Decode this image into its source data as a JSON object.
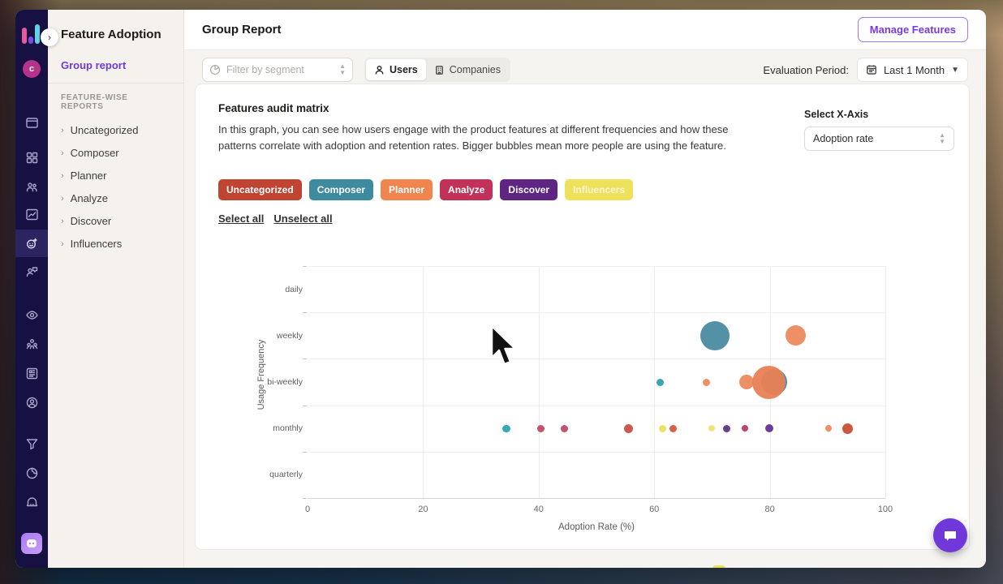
{
  "rail": {
    "logo": {
      "bar_colors": [
        "#e8589b",
        "#7a4de0",
        "#5fd4e6"
      ]
    },
    "avatar": {
      "letter": "c",
      "color": "#b5338a"
    },
    "icons": [
      {
        "name": "browser-window-icon"
      },
      {
        "name": "grid-icon"
      },
      {
        "name": "users-icon"
      },
      {
        "name": "chart-line-icon"
      },
      {
        "name": "feature-adoption-icon",
        "active": true
      },
      {
        "name": "user-message-icon"
      },
      {
        "name": "eye-icon"
      },
      {
        "name": "team-icon"
      },
      {
        "name": "board-icon"
      },
      {
        "name": "user-circle-icon"
      },
      {
        "name": "funnel-icon"
      },
      {
        "name": "disc-icon"
      },
      {
        "name": "alert-icon"
      },
      {
        "name": "activity-icon"
      }
    ],
    "mascot": {
      "name": "assistant-app-icon"
    }
  },
  "sidebar": {
    "title": "Feature Adoption",
    "active_link": "Group report",
    "section_label": "FEATURE-WISE REPORTS",
    "items": [
      {
        "label": "Uncategorized"
      },
      {
        "label": "Composer"
      },
      {
        "label": "Planner"
      },
      {
        "label": "Analyze"
      },
      {
        "label": "Discover"
      },
      {
        "label": "Influencers"
      }
    ]
  },
  "header": {
    "title": "Group Report",
    "manage_button": "Manage Features"
  },
  "filters": {
    "segment_placeholder": "Filter by segment",
    "toggle": [
      {
        "label": "Users",
        "selected": true,
        "icon": "person-icon"
      },
      {
        "label": "Companies",
        "selected": false,
        "icon": "building-icon"
      }
    ],
    "evaluation_label": "Evaluation Period:",
    "evaluation_value": "Last 1 Month",
    "evaluation_icon": "calendar-icon"
  },
  "card": {
    "title": "Features audit matrix",
    "description": "In this graph, you can see how users engage with the product features at different frequencies and how these patterns correlate with adoption and retention rates. Bigger bubbles mean more people are using the feature.",
    "chips": [
      {
        "label": "Uncategorized",
        "color": "#c04432",
        "text_color": "#ffffff"
      },
      {
        "label": "Composer",
        "color": "#3e8ba0",
        "text_color": "#ffffff"
      },
      {
        "label": "Planner",
        "color": "#f0854f",
        "text_color": "#ffffff"
      },
      {
        "label": "Analyze",
        "color": "#c23159",
        "text_color": "#ffffff"
      },
      {
        "label": "Discover",
        "color": "#5e2583",
        "text_color": "#ffffff"
      },
      {
        "label": "Influencers",
        "color": "#eee25c",
        "text_color": "#f8f4d2"
      }
    ],
    "select_all": "Select all",
    "unselect_all": "Unselect all",
    "x_axis_title": "Select X-Axis",
    "x_axis_value": "Adoption rate"
  },
  "chart_data": {
    "type": "scatter",
    "subtype": "bubble",
    "xlabel": "Adoption Rate (%)",
    "ylabel": "Usage Frequency",
    "xlim": [
      0,
      100
    ],
    "x_ticks": [
      0,
      20,
      40,
      60,
      80,
      100
    ],
    "y_categories": [
      "daily",
      "weekly",
      "bi-weekly",
      "monthly",
      "quarterly"
    ],
    "grid": true,
    "points": [
      {
        "category": "weekly",
        "x": 70.5,
        "r": 18,
        "color": "#4a8ba1"
      },
      {
        "category": "weekly",
        "x": 84.5,
        "r": 12.5,
        "color": "#ec8a5e"
      },
      {
        "category": "bi-weekly",
        "x": 61,
        "r": 4.5,
        "color": "#2f9fae"
      },
      {
        "category": "bi-weekly",
        "x": 69,
        "r": 4.5,
        "color": "#ec8a5e"
      },
      {
        "category": "bi-weekly",
        "x": 76,
        "r": 9,
        "color": "#ec8a5e"
      },
      {
        "category": "bi-weekly",
        "x": 80.7,
        "r": 16,
        "color": "#3d8fa8"
      },
      {
        "category": "bi-weekly",
        "x": 79.8,
        "r": 20.5,
        "color": "#e98055"
      },
      {
        "category": "monthly",
        "x": 34.4,
        "r": 4.7,
        "color": "#2da3ae"
      },
      {
        "category": "monthly",
        "x": 40.4,
        "r": 4.5,
        "color": "#bf4a63"
      },
      {
        "category": "monthly",
        "x": 44.4,
        "r": 4.5,
        "color": "#bf4a63"
      },
      {
        "category": "monthly",
        "x": 55.5,
        "r": 5.5,
        "color": "#cb4f44"
      },
      {
        "category": "monthly",
        "x": 61.4,
        "r": 4.5,
        "color": "#e8e05a"
      },
      {
        "category": "monthly",
        "x": 63.3,
        "r": 4.5,
        "color": "#d4573c"
      },
      {
        "category": "monthly",
        "x": 70,
        "r": 4,
        "color": "#ece579"
      },
      {
        "category": "monthly",
        "x": 72.6,
        "r": 4.5,
        "color": "#5d3488"
      },
      {
        "category": "monthly",
        "x": 75.7,
        "r": 4,
        "color": "#b93b64"
      },
      {
        "category": "monthly",
        "x": 79.9,
        "r": 5,
        "color": "#653192"
      },
      {
        "category": "monthly",
        "x": 90.1,
        "r": 4,
        "color": "#e98a62"
      },
      {
        "category": "monthly",
        "x": 93.5,
        "r": 6.5,
        "color": "#c94e35"
      }
    ]
  },
  "chat": {
    "icon": "chat-bubble-icon",
    "color": "#7138d9"
  }
}
